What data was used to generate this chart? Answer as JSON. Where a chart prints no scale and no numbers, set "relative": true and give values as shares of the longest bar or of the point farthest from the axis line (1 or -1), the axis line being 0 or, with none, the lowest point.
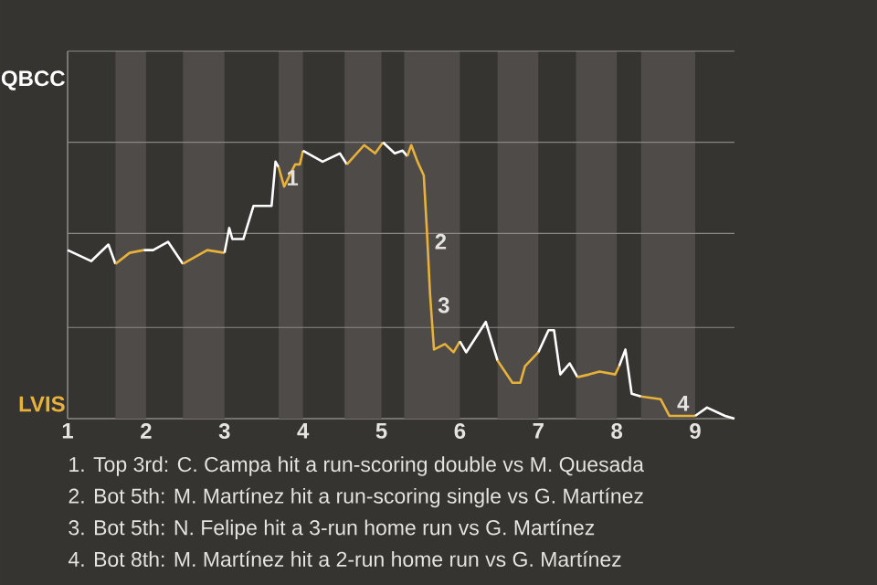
{
  "chart_data": {
    "type": "line",
    "relative": true,
    "xlim": [
      1,
      9.5
    ],
    "xticks": [
      1,
      2,
      3,
      4,
      5,
      6,
      7,
      8,
      9
    ],
    "ref_lines": [
      {
        "axis": "y",
        "value": 0.33,
        "color": "#8a8886"
      },
      {
        "axis": "y",
        "value": 0.67,
        "color": "#8a8886"
      },
      {
        "axis": "y",
        "value": 1,
        "color": "#8a8886"
      },
      {
        "axis": "y",
        "value": 1.33,
        "color": "#8a8886"
      }
    ],
    "series": [
      {
        "color": "#ffffff",
        "x": [
          1.0,
          1.3,
          1.52,
          1.61
        ],
        "values": [
          0.61,
          0.57,
          0.63,
          0.56
        ]
      },
      {
        "color": "#e8b23a",
        "x": [
          1.61,
          1.79,
          1.97
        ],
        "values": [
          0.56,
          0.6,
          0.61
        ]
      },
      {
        "color": "#ffffff",
        "x": [
          1.97,
          2.09,
          2.28,
          2.47
        ],
        "values": [
          0.61,
          0.61,
          0.64,
          0.56
        ]
      },
      {
        "color": "#e8b23a",
        "x": [
          2.47,
          2.78,
          3.0
        ],
        "values": [
          0.56,
          0.61,
          0.6
        ]
      },
      {
        "color": "#ffffff",
        "x": [
          3.0,
          3.06,
          3.1,
          3.24,
          3.37,
          3.6,
          3.65,
          3.69
        ],
        "values": [
          0.6,
          0.69,
          0.65,
          0.65,
          0.77,
          0.77,
          0.93,
          0.91
        ]
      },
      {
        "color": "#e8b23a",
        "x": [
          3.69,
          3.76,
          3.9,
          3.96,
          4.0
        ],
        "values": [
          0.91,
          0.84,
          0.92,
          0.92,
          0.97
        ]
      },
      {
        "color": "#ffffff",
        "x": [
          4.0,
          4.25,
          4.47,
          4.56
        ],
        "values": [
          0.97,
          0.93,
          0.96,
          0.92
        ]
      },
      {
        "color": "#e8b23a",
        "x": [
          4.56,
          4.78,
          4.92,
          5.02
        ],
        "values": [
          0.92,
          0.99,
          0.96,
          1
        ]
      },
      {
        "color": "#ffffff",
        "x": [
          5.02,
          5.17,
          5.27,
          5.33
        ],
        "values": [
          1,
          0.96,
          0.97,
          0.95
        ]
      },
      {
        "color": "#e8b23a",
        "x": [
          5.33,
          5.38,
          5.46,
          5.54,
          5.58,
          5.62,
          5.67,
          5.81,
          5.92,
          6.0
        ],
        "values": [
          0.95,
          0.99,
          0.93,
          0.88,
          0.68,
          0.45,
          0.25,
          0.27,
          0.24,
          0.28
        ]
      },
      {
        "color": "#ffffff",
        "x": [
          6.0,
          6.08,
          6.33,
          6.48
        ],
        "values": [
          0.28,
          0.24,
          0.35,
          0.21
        ]
      },
      {
        "color": "#e8b23a",
        "x": [
          6.48,
          6.67,
          6.77,
          6.83,
          7.0
        ],
        "values": [
          0.21,
          0.13,
          0.13,
          0.19,
          0.24
        ]
      },
      {
        "color": "#ffffff",
        "x": [
          7.0,
          7.13,
          7.2,
          7.28,
          7.4,
          7.5
        ],
        "values": [
          0.24,
          0.32,
          0.32,
          0.16,
          0.2,
          0.15
        ]
      },
      {
        "color": "#e8b23a",
        "x": [
          7.5,
          7.65,
          7.78,
          7.98,
          8.03
        ],
        "values": [
          0.15,
          0.16,
          0.17,
          0.16,
          0.19
        ]
      },
      {
        "color": "#ffffff",
        "x": [
          8.03,
          8.11,
          8.19,
          8.31
        ],
        "values": [
          0.19,
          0.25,
          0.09,
          0.08
        ]
      },
      {
        "color": "#e8b23a",
        "x": [
          8.31,
          8.56,
          8.67,
          9.0
        ],
        "values": [
          0.08,
          0.07,
          0.01,
          0.01
        ]
      },
      {
        "color": "#ffffff",
        "x": [
          9.0,
          9.15,
          9.38,
          9.5
        ],
        "values": [
          0.01,
          0.04,
          0.01,
          0
        ]
      }
    ],
    "bands": [
      {
        "axis": "x",
        "from": 1.61,
        "to": 2.0,
        "color": "#4e4b48"
      },
      {
        "axis": "x",
        "from": 2.47,
        "to": 3.0,
        "color": "#4e4b48"
      },
      {
        "axis": "x",
        "from": 3.69,
        "to": 4.0,
        "color": "#4e4b48"
      },
      {
        "axis": "x",
        "from": 4.53,
        "to": 5.0,
        "color": "#4e4b48"
      },
      {
        "axis": "x",
        "from": 5.29,
        "to": 6.0,
        "color": "#4e4b48"
      },
      {
        "axis": "x",
        "from": 6.48,
        "to": 7.0,
        "color": "#4e4b48"
      },
      {
        "axis": "x",
        "from": 7.48,
        "to": 8.0,
        "color": "#4e4b48"
      },
      {
        "axis": "x",
        "from": 8.31,
        "to": 9.0,
        "color": "#4e4b48"
      }
    ],
    "annotations": [
      "QBCC",
      "LVIS",
      {
        "text": "1",
        "x": 3.69,
        "y": 0.91
      },
      {
        "text": "2",
        "x": 5.58,
        "y": 0.68
      },
      {
        "text": "3",
        "x": 5.62,
        "y": 0.45
      },
      {
        "text": "4",
        "x": 8.67,
        "y": 0.01
      },
      "1. Top 3rd: C. Campa hit a run-scoring double vs M. Quesada",
      "2. Bot 5th: M. Martínez hit a run-scoring single vs G. Martínez",
      "3. Bot 5th: N. Felipe hit a 3-run home run vs G. Martínez",
      "4. Bot 8th: M. Martínez hit a 2-run home run vs G. Martínez"
    ]
  }
}
